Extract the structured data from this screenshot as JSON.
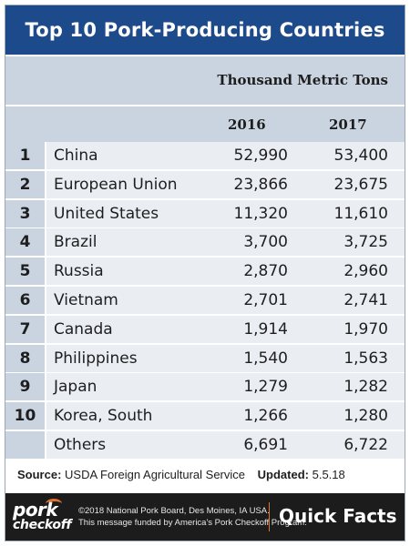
{
  "title": "Top 10 Pork-Producing Countries",
  "unit_label": "Thousand Metric Tons",
  "years": [
    "2016",
    "2017"
  ],
  "rows": [
    {
      "rank": "1",
      "country": "China",
      "v2016": "52,990",
      "v2017": "53,400"
    },
    {
      "rank": "2",
      "country": "European Union",
      "v2016": "23,866",
      "v2017": "23,675"
    },
    {
      "rank": "3",
      "country": "United States",
      "v2016": "11,320",
      "v2017": "11,610"
    },
    {
      "rank": "4",
      "country": "Brazil",
      "v2016": "3,700",
      "v2017": "3,725"
    },
    {
      "rank": "5",
      "country": "Russia",
      "v2016": "2,870",
      "v2017": "2,960"
    },
    {
      "rank": "6",
      "country": "Vietnam",
      "v2016": "2,701",
      "v2017": "2,741"
    },
    {
      "rank": "7",
      "country": "Canada",
      "v2016": "1,914",
      "v2017": "1,970"
    },
    {
      "rank": "8",
      "country": "Philippines",
      "v2016": "1,540",
      "v2017": "1,563"
    },
    {
      "rank": "9",
      "country": "Japan",
      "v2016": "1,279",
      "v2017": "1,282"
    },
    {
      "rank": "10",
      "country": "Korea, South",
      "v2016": "1,266",
      "v2017": "1,280"
    },
    {
      "rank": "",
      "country": "Others",
      "v2016": "6,691",
      "v2017": "6,722"
    }
  ],
  "source": {
    "label": "Source:",
    "text": "USDA Foreign Agricultural Service",
    "updated_label": "Updated:",
    "updated_value": "5.5.18"
  },
  "footer": {
    "logo_line1": "pork",
    "logo_line2": "checkoff",
    "copyright": "©2018 National Pork Board, Des Moines, IA USA.",
    "funded": "This message funded by America's Pork Checkoff Program.",
    "quick_facts": "Quick Facts"
  },
  "colors": {
    "header_blue": "#1d4a8a",
    "light_blue": "#c9d4e0",
    "row_bg": "#eaeef3",
    "footer_bg": "#1c1c1c",
    "accent_orange": "#e0752a"
  }
}
